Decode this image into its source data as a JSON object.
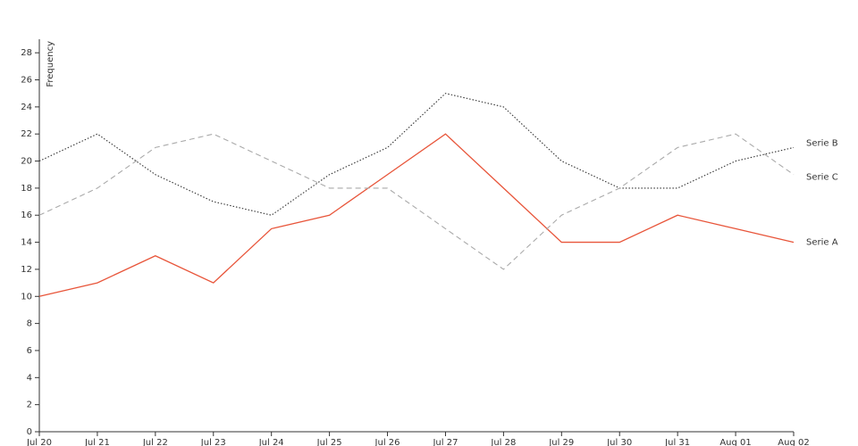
{
  "chart_data": {
    "type": "line",
    "y_label": "Frequency",
    "categories": [
      "Jul 20",
      "Jul 21",
      "Jul 22",
      "Jul 23",
      "Jul 24",
      "Jul 25",
      "Jul 26",
      "Jul 27",
      "Jul 28",
      "Jul 29",
      "Jul 30",
      "Jul 31",
      "Aug 01",
      "Aug 02"
    ],
    "series": [
      {
        "name": "Serie A",
        "color": "#e8553a",
        "dash": "solid",
        "values": [
          10,
          11,
          13,
          11,
          15,
          16,
          19,
          22,
          18,
          14,
          14,
          16,
          15,
          14
        ]
      },
      {
        "name": "Serie B",
        "color": "#333333",
        "dash": "dotted",
        "values": [
          20,
          22,
          19,
          17,
          16,
          19,
          21,
          25,
          24,
          20,
          18,
          18,
          20,
          21
        ]
      },
      {
        "name": "Serie C",
        "color": "#aaaaaa",
        "dash": "dashed",
        "values": [
          16,
          18,
          21,
          22,
          20,
          18,
          18,
          15,
          12,
          16,
          18,
          21,
          22,
          19
        ]
      }
    ],
    "ylim": [
      0,
      29
    ],
    "yticks": [
      0,
      2,
      4,
      6,
      8,
      10,
      12,
      14,
      16,
      18,
      20,
      22,
      24,
      26,
      28
    ],
    "grid": false
  }
}
